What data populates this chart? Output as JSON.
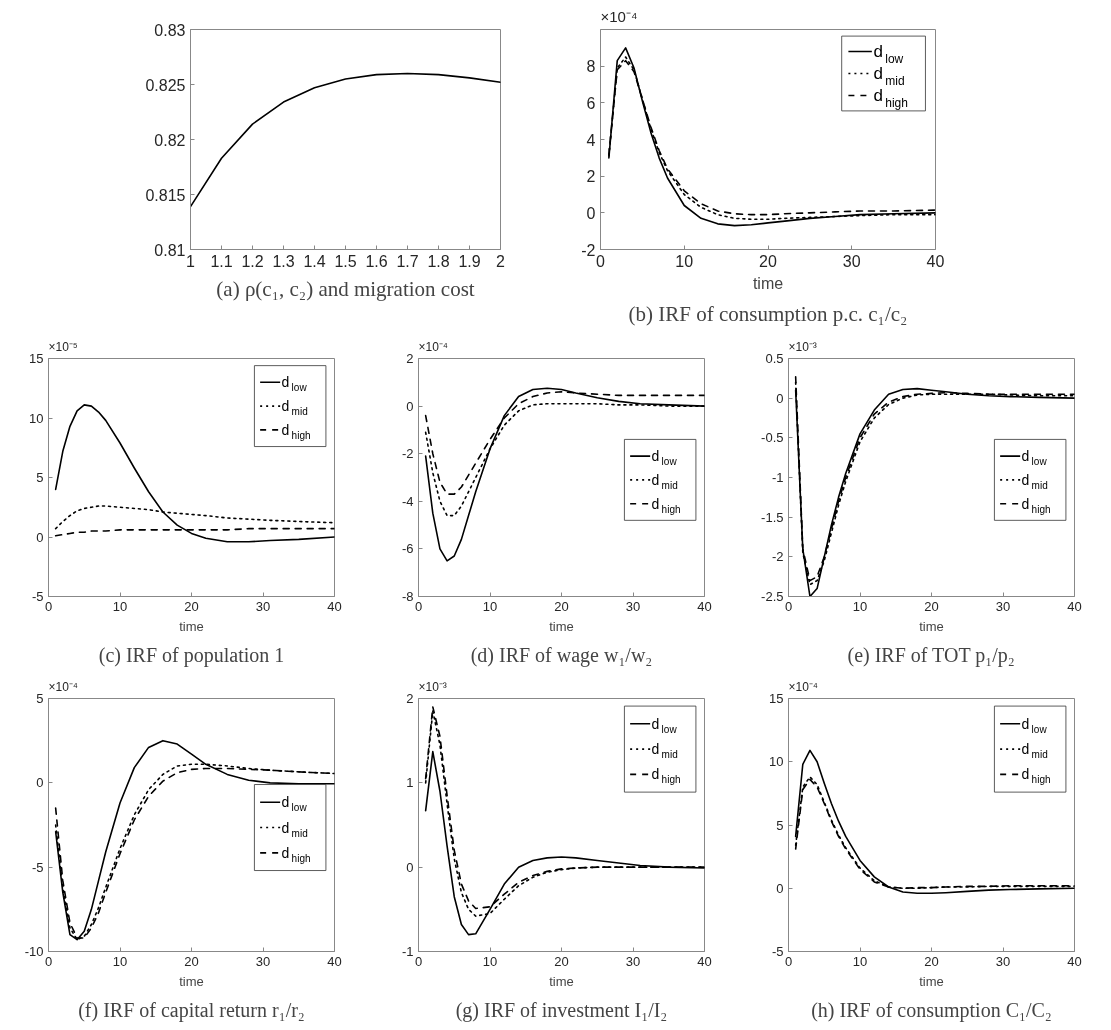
{
  "chart_data": [
    {
      "type": "line",
      "title": "(a) ρ(c₁, c₂) and migration cost",
      "x": [
        1,
        1.1,
        1.2,
        1.3,
        1.4,
        1.5,
        1.6,
        1.7,
        1.8,
        1.9,
        2
      ],
      "xlim": [
        1,
        2
      ],
      "xticks": [
        1,
        1.1,
        1.2,
        1.3,
        1.4,
        1.5,
        1.6,
        1.7,
        1.8,
        1.9,
        2
      ],
      "ylim": [
        0.81,
        0.83
      ],
      "yticks": [
        0.81,
        0.815,
        0.82,
        0.825,
        0.83
      ],
      "grid": false,
      "legend": false,
      "series": [
        {
          "color": "#000000",
          "line_style": "solid",
          "values": [
            0.8139,
            0.8183,
            0.8214,
            0.8234,
            0.8247,
            0.8255,
            0.8259,
            0.826,
            0.8259,
            0.8256,
            0.8252
          ]
        }
      ]
    },
    {
      "type": "line",
      "title": "(b) IRF of consumption p.c. c₁/c₂",
      "xlabel": "time",
      "annotations": [
        "×10⁻⁴"
      ],
      "x": [
        1,
        2,
        3,
        4,
        5,
        6,
        7,
        8,
        10,
        12,
        14,
        16,
        18,
        20,
        22,
        25,
        28,
        31,
        35,
        40
      ],
      "xlim": [
        0,
        40
      ],
      "xticks": [
        0,
        10,
        20,
        30,
        40
      ],
      "ylim": [
        -2,
        10
      ],
      "yticks": [
        -2,
        0,
        2,
        4,
        6,
        8
      ],
      "grid": false,
      "legend": "top right",
      "series": [
        {
          "name": "d$_{low}$",
          "color": "#000000",
          "line_style": "solid",
          "values": [
            3.0,
            8.3,
            9.0,
            7.9,
            6.1,
            4.4,
            3.0,
            1.9,
            0.4,
            -0.3,
            -0.6,
            -0.7,
            -0.65,
            -0.55,
            -0.45,
            -0.3,
            -0.2,
            -0.1,
            -0.05,
            0
          ]
        },
        {
          "name": "d$_{mid}$",
          "color": "#000000",
          "line_style": "dotted",
          "values": [
            3.1,
            7.9,
            8.5,
            7.8,
            6.2,
            4.6,
            3.3,
            2.3,
            1.0,
            0.3,
            -0.1,
            -0.3,
            -0.35,
            -0.35,
            -0.3,
            -0.25,
            -0.2,
            -0.15,
            -0.1,
            -0.1
          ]
        },
        {
          "name": "d$_{high}$",
          "color": "#000000",
          "line_style": "dashed",
          "values": [
            3.2,
            7.8,
            8.3,
            7.7,
            6.2,
            4.7,
            3.4,
            2.4,
            1.2,
            0.5,
            0.1,
            -0.05,
            -0.1,
            -0.1,
            -0.05,
            0,
            0.05,
            0.1,
            0.1,
            0.15
          ]
        }
      ]
    },
    {
      "type": "line",
      "title": "(c) IRF of population 1",
      "xlabel": "time",
      "annotations": [
        "×10⁻⁵"
      ],
      "x": [
        1,
        2,
        3,
        4,
        5,
        6,
        7,
        8,
        10,
        12,
        14,
        16,
        18,
        20,
        22,
        25,
        28,
        31,
        35,
        40
      ],
      "xlim": [
        0,
        40
      ],
      "xticks": [
        0,
        10,
        20,
        30,
        40
      ],
      "ylim": [
        -5,
        15
      ],
      "yticks": [
        -5,
        0,
        5,
        10,
        15
      ],
      "grid": false,
      "legend": "top right",
      "series": [
        {
          "name": "d$_{low}$",
          "color": "#000000",
          "line_style": "solid",
          "values": [
            4,
            7.2,
            9.3,
            10.6,
            11.1,
            11.0,
            10.5,
            9.8,
            7.9,
            5.8,
            3.8,
            2.1,
            1.0,
            0.3,
            -0.1,
            -0.4,
            -0.4,
            -0.3,
            -0.2,
            0
          ]
        },
        {
          "name": "d$_{mid}$",
          "color": "#000000",
          "line_style": "dotted",
          "values": [
            0.7,
            1.3,
            1.8,
            2.2,
            2.4,
            2.5,
            2.6,
            2.6,
            2.5,
            2.4,
            2.3,
            2.1,
            2.0,
            1.9,
            1.8,
            1.6,
            1.5,
            1.4,
            1.3,
            1.2
          ]
        },
        {
          "name": "d$_{high}$",
          "color": "#000000",
          "line_style": "dashed",
          "values": [
            0.1,
            0.2,
            0.3,
            0.4,
            0.4,
            0.5,
            0.5,
            0.5,
            0.6,
            0.6,
            0.6,
            0.6,
            0.6,
            0.6,
            0.6,
            0.6,
            0.7,
            0.7,
            0.7,
            0.7
          ]
        }
      ]
    },
    {
      "type": "line",
      "title": "(d) IRF of wage w₁/w₂",
      "xlabel": "time",
      "annotations": [
        "×10⁻⁴"
      ],
      "x": [
        1,
        2,
        3,
        4,
        5,
        6,
        7,
        8,
        10,
        12,
        14,
        16,
        18,
        20,
        22,
        25,
        28,
        31,
        35,
        40
      ],
      "xlim": [
        0,
        40
      ],
      "xticks": [
        0,
        10,
        20,
        30,
        40
      ],
      "ylim": [
        -8,
        2
      ],
      "yticks": [
        -8,
        -6,
        -4,
        -2,
        0,
        2
      ],
      "grid": false,
      "legend": "right",
      "series": [
        {
          "name": "d$_{low}$",
          "color": "#000000",
          "line_style": "solid",
          "values": [
            -2.1,
            -4.5,
            -6.0,
            -6.5,
            -6.3,
            -5.6,
            -4.6,
            -3.6,
            -1.8,
            -0.4,
            0.4,
            0.7,
            0.75,
            0.7,
            0.55,
            0.35,
            0.2,
            0.1,
            0.05,
            0
          ]
        },
        {
          "name": "d$_{mid}$",
          "color": "#000000",
          "line_style": "dotted",
          "values": [
            -1.1,
            -2.8,
            -4.0,
            -4.6,
            -4.6,
            -4.2,
            -3.6,
            -3.0,
            -1.8,
            -0.8,
            -0.2,
            0.05,
            0.1,
            0.1,
            0.1,
            0.1,
            0.05,
            0.05,
            0,
            0
          ]
        },
        {
          "name": "d$_{high}$",
          "color": "#000000",
          "line_style": "dashed",
          "values": [
            -0.4,
            -2.0,
            -3.2,
            -3.7,
            -3.7,
            -3.4,
            -2.9,
            -2.4,
            -1.4,
            -0.5,
            0.1,
            0.4,
            0.55,
            0.6,
            0.55,
            0.5,
            0.45,
            0.45,
            0.45,
            0.45
          ]
        }
      ]
    },
    {
      "type": "line",
      "title": "(e) IRF of TOT p₁/p₂",
      "xlabel": "time",
      "annotations": [
        "×10⁻³"
      ],
      "x": [
        1,
        2,
        3,
        4,
        5,
        6,
        7,
        8,
        10,
        12,
        14,
        16,
        18,
        20,
        22,
        25,
        28,
        31,
        35,
        40
      ],
      "xlim": [
        0,
        40
      ],
      "xticks": [
        0,
        10,
        20,
        30,
        40
      ],
      "ylim": [
        -2.5,
        0.5
      ],
      "yticks": [
        -2.5,
        -2,
        -1.5,
        -1,
        -0.5,
        0,
        0.5
      ],
      "grid": false,
      "legend": "right",
      "series": [
        {
          "name": "d$_{low}$",
          "color": "#000000",
          "line_style": "solid",
          "values": [
            0.1,
            -1.9,
            -2.5,
            -2.4,
            -2.0,
            -1.6,
            -1.25,
            -0.95,
            -0.45,
            -0.15,
            0.05,
            0.11,
            0.12,
            0.1,
            0.08,
            0.05,
            0.03,
            0.02,
            0.01,
            0
          ]
        },
        {
          "name": "d$_{mid}$",
          "color": "#000000",
          "line_style": "dotted",
          "values": [
            0.2,
            -1.95,
            -2.35,
            -2.3,
            -2.05,
            -1.7,
            -1.35,
            -1.05,
            -0.55,
            -0.25,
            -0.08,
            0.0,
            0.04,
            0.05,
            0.05,
            0.05,
            0.05,
            0.04,
            0.03,
            0.03
          ]
        },
        {
          "name": "d$_{high}$",
          "color": "#000000",
          "line_style": "dashed",
          "values": [
            0.27,
            -1.9,
            -2.3,
            -2.25,
            -2.0,
            -1.65,
            -1.3,
            -1.0,
            -0.5,
            -0.2,
            -0.05,
            0.02,
            0.05,
            0.06,
            0.07,
            0.06,
            0.05,
            0.05,
            0.05,
            0.05
          ]
        }
      ]
    },
    {
      "type": "line",
      "title": "(f) IRF of capital return r₁/r₂",
      "xlabel": "time",
      "annotations": [
        "×10⁻⁴"
      ],
      "x": [
        1,
        2,
        3,
        4,
        5,
        6,
        7,
        8,
        10,
        12,
        14,
        16,
        18,
        20,
        22,
        25,
        28,
        31,
        35,
        40
      ],
      "xlim": [
        0,
        40
      ],
      "xticks": [
        0,
        10,
        20,
        30,
        40
      ],
      "ylim": [
        -10,
        5
      ],
      "yticks": [
        -10,
        -5,
        0,
        5
      ],
      "grid": false,
      "legend": "right",
      "series": [
        {
          "name": "d$_{low}$",
          "color": "#000000",
          "line_style": "solid",
          "values": [
            -2.9,
            -6.5,
            -9.0,
            -9.3,
            -8.8,
            -7.5,
            -5.8,
            -4.1,
            -1.2,
            0.9,
            2.1,
            2.5,
            2.3,
            1.7,
            1.1,
            0.5,
            0.15,
            0.0,
            -0.05,
            -0.05
          ]
        },
        {
          "name": "d$_{mid}$",
          "color": "#000000",
          "line_style": "dotted",
          "values": [
            -2.5,
            -6.2,
            -8.6,
            -9.3,
            -9.1,
            -8.4,
            -7.4,
            -6.2,
            -3.9,
            -1.9,
            -0.4,
            0.5,
            1.0,
            1.1,
            1.1,
            1.0,
            0.85,
            0.75,
            0.65,
            0.55
          ]
        },
        {
          "name": "d$_{high}$",
          "color": "#000000",
          "line_style": "dashed",
          "values": [
            -1.5,
            -5.8,
            -8.3,
            -9.2,
            -9.2,
            -8.6,
            -7.7,
            -6.5,
            -4.2,
            -2.2,
            -0.8,
            0.1,
            0.6,
            0.8,
            0.85,
            0.85,
            0.8,
            0.75,
            0.65,
            0.55
          ]
        }
      ]
    },
    {
      "type": "line",
      "title": "(g) IRF of investment I₁/I₂",
      "xlabel": "time",
      "annotations": [
        "×10⁻³"
      ],
      "x": [
        1,
        2,
        3,
        4,
        5,
        6,
        7,
        8,
        10,
        12,
        14,
        16,
        18,
        20,
        22,
        25,
        28,
        31,
        35,
        40
      ],
      "xlim": [
        0,
        40
      ],
      "xticks": [
        0,
        10,
        20,
        30,
        40
      ],
      "ylim": [
        -1,
        2
      ],
      "yticks": [
        -1,
        0,
        1,
        2
      ],
      "grid": false,
      "legend": "top right",
      "series": [
        {
          "name": "d$_{low}$",
          "color": "#000000",
          "line_style": "solid",
          "values": [
            0.67,
            1.37,
            0.9,
            0.25,
            -0.35,
            -0.68,
            -0.8,
            -0.79,
            -0.5,
            -0.2,
            0.0,
            0.08,
            0.11,
            0.12,
            0.11,
            0.08,
            0.05,
            0.02,
            0.0,
            -0.01
          ]
        },
        {
          "name": "d$_{mid}$",
          "color": "#000000",
          "line_style": "dotted",
          "values": [
            1.0,
            1.85,
            1.45,
            0.75,
            0.1,
            -0.3,
            -0.5,
            -0.58,
            -0.55,
            -0.38,
            -0.22,
            -0.12,
            -0.06,
            -0.03,
            -0.01,
            0.0,
            0.0,
            0.0,
            0.0,
            0.0
          ]
        },
        {
          "name": "d$_{high}$",
          "color": "#000000",
          "line_style": "dashed",
          "values": [
            1.05,
            1.9,
            1.55,
            0.85,
            0.2,
            -0.2,
            -0.4,
            -0.49,
            -0.47,
            -0.32,
            -0.18,
            -0.1,
            -0.05,
            -0.02,
            -0.01,
            0.0,
            0.0,
            0.0,
            0.0,
            0.0
          ]
        }
      ]
    },
    {
      "type": "line",
      "title": "(h) IRF of consumption C₁/C₂",
      "xlabel": "time",
      "annotations": [
        "×10⁻⁴"
      ],
      "x": [
        1,
        2,
        3,
        4,
        5,
        6,
        7,
        8,
        10,
        12,
        14,
        16,
        18,
        20,
        22,
        25,
        28,
        31,
        35,
        40
      ],
      "xlim": [
        0,
        40
      ],
      "xticks": [
        0,
        10,
        20,
        30,
        40
      ],
      "ylim": [
        -5,
        15
      ],
      "yticks": [
        -5,
        0,
        5,
        10,
        15
      ],
      "grid": false,
      "legend": "top right",
      "series": [
        {
          "name": "d$_{low}$",
          "color": "#000000",
          "line_style": "solid",
          "values": [
            4.1,
            9.8,
            10.9,
            10.0,
            8.3,
            6.7,
            5.3,
            4.1,
            2.2,
            0.9,
            0.1,
            -0.3,
            -0.4,
            -0.4,
            -0.35,
            -0.25,
            -0.15,
            -0.1,
            -0.05,
            0
          ]
        },
        {
          "name": "d$_{mid}$",
          "color": "#000000",
          "line_style": "dotted",
          "values": [
            3.4,
            8.0,
            8.8,
            8.2,
            6.8,
            5.4,
            4.2,
            3.2,
            1.6,
            0.6,
            0.1,
            0.0,
            0.0,
            0.05,
            0.1,
            0.1,
            0.15,
            0.15,
            0.15,
            0.15
          ]
        },
        {
          "name": "d$_{high}$",
          "color": "#000000",
          "line_style": "dashed",
          "values": [
            3.1,
            7.8,
            8.6,
            8.0,
            6.7,
            5.3,
            4.1,
            3.1,
            1.5,
            0.5,
            0.1,
            0.0,
            0.05,
            0.05,
            0.1,
            0.15,
            0.15,
            0.2,
            0.2,
            0.2
          ]
        }
      ]
    }
  ]
}
